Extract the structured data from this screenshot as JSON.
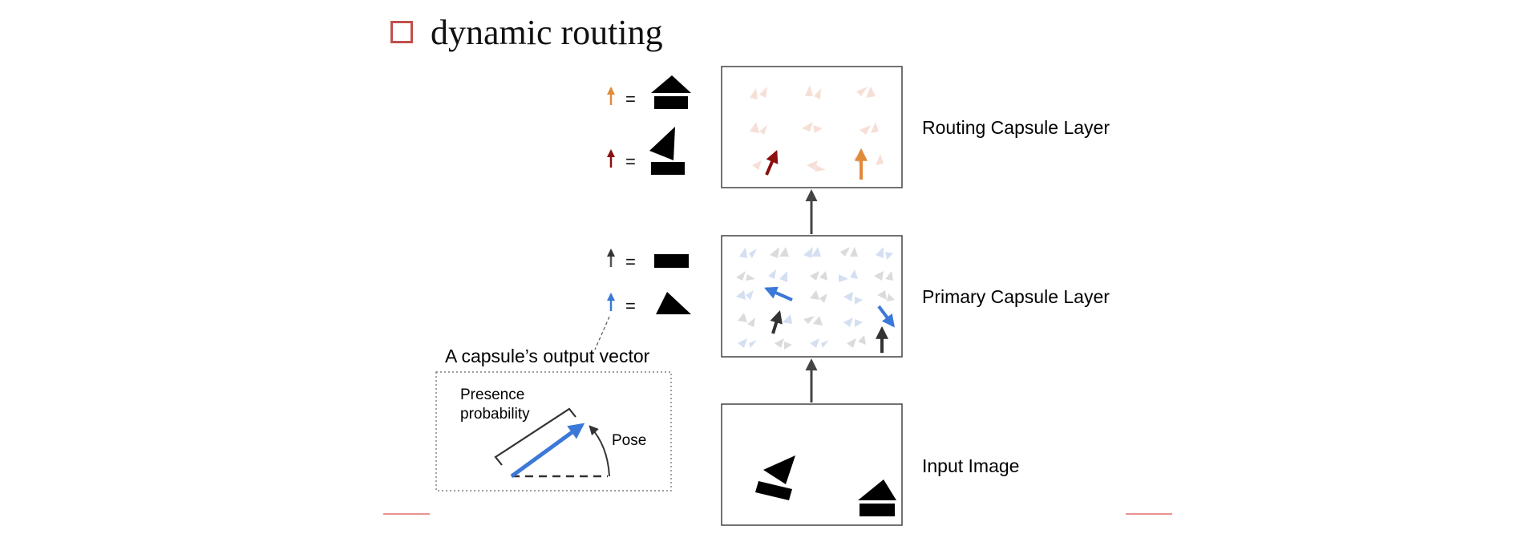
{
  "title": {
    "text": "dynamic routing",
    "bullet_color": "#c0504d"
  },
  "layers": {
    "routing": "Routing Capsule Layer",
    "primary": "Primary Capsule Layer",
    "input": "Input Image"
  },
  "legend": [
    {
      "arrow_color": "#e08a3c",
      "equals": "=",
      "shape": "house-icon"
    },
    {
      "arrow_color": "#8b1010",
      "equals": "=",
      "shape": "boat-icon"
    },
    {
      "arrow_color": "#555555",
      "equals": "=",
      "shape": "rectangle-icon"
    },
    {
      "arrow_color": "#3b78d8",
      "equals": "=",
      "shape": "triangle-icon"
    }
  ],
  "capsule_box": {
    "heading": "A capsule’s output vector",
    "presence_line1": "Presence",
    "presence_line2": "probability",
    "pose": "Pose"
  },
  "colors": {
    "orange": "#e08a3c",
    "dark_red": "#8b1010",
    "blue": "#3b78d8",
    "gray": "#555555",
    "accent_red": "#d9534f"
  }
}
